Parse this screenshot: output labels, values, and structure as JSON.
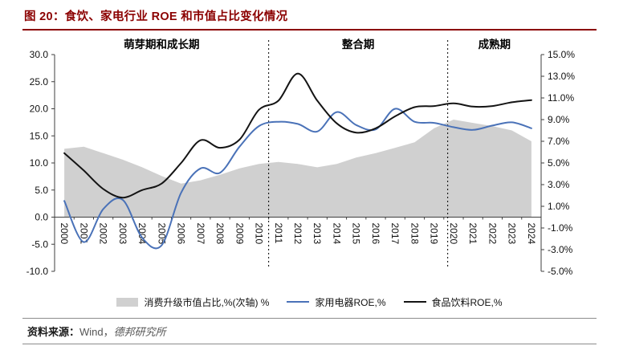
{
  "figure": {
    "title": "图 20：食饮、家电行业 ROE 和市值占比变化情况",
    "accent_color": "#8B0000"
  },
  "source": {
    "prefix": "资料来源：",
    "wind": "Wind，",
    "org": "德邦研究所"
  },
  "chart_data": {
    "type": "line",
    "x": [
      "2000",
      "2001",
      "2002",
      "2003",
      "2004",
      "2005",
      "2006",
      "2007",
      "2008",
      "2009",
      "2010",
      "2011",
      "2012",
      "2013",
      "2014",
      "2015",
      "2016",
      "2017",
      "2018",
      "2019",
      "2020",
      "2021",
      "2022",
      "2023",
      "2024"
    ],
    "phases": [
      {
        "label": "萌芽期和成长期"
      },
      {
        "label": "整合期"
      },
      {
        "label": "成熟期"
      }
    ],
    "dividers": [
      2010.5,
      2019.7
    ],
    "left_axis": {
      "min": -10,
      "max": 30,
      "ticks": [
        "30.0",
        "25.0",
        "20.0",
        "15.0",
        "10.0",
        "5.0",
        "0.0",
        "-5.0",
        "-10.0"
      ]
    },
    "right_axis": {
      "min": -5,
      "max": 15,
      "ticks": [
        "15.0%",
        "13.0%",
        "11.0%",
        "9.0%",
        "7.0%",
        "5.0%",
        "3.0%",
        "1.0%",
        "-1.0%",
        "-3.0%",
        "-5.0%"
      ]
    },
    "series": [
      {
        "name": "消费升级市值占比,%(次轴) %",
        "type": "area",
        "axis": "right",
        "color": "#d0d0d0",
        "values": [
          6.3,
          6.5,
          5.9,
          5.3,
          4.6,
          3.8,
          3.1,
          3.4,
          3.9,
          4.5,
          4.9,
          5.1,
          4.9,
          4.6,
          4.9,
          5.5,
          5.9,
          6.4,
          6.9,
          8.2,
          9.0,
          8.7,
          8.4,
          8.0,
          7.0
        ]
      },
      {
        "name": "家用电器ROE,%",
        "type": "line",
        "axis": "left",
        "color": "#4a72b8",
        "values": [
          3.0,
          -4.6,
          1.5,
          3.2,
          -3.8,
          -5.2,
          4.5,
          9.0,
          8.2,
          13.0,
          16.8,
          17.6,
          17.2,
          15.8,
          19.4,
          17.0,
          16.2,
          20.0,
          17.6,
          17.4,
          16.6,
          16.1,
          16.9,
          17.5,
          16.4
        ]
      },
      {
        "name": "食品饮料ROE,%",
        "type": "line",
        "axis": "left",
        "color": "#141414",
        "values": [
          11.8,
          8.6,
          5.2,
          3.6,
          5.0,
          6.2,
          10.0,
          14.2,
          12.8,
          14.3,
          19.8,
          21.5,
          26.5,
          21.5,
          17.3,
          15.6,
          16.4,
          18.6,
          20.3,
          20.5,
          21.0,
          20.4,
          20.5,
          21.2,
          21.6
        ]
      }
    ]
  }
}
